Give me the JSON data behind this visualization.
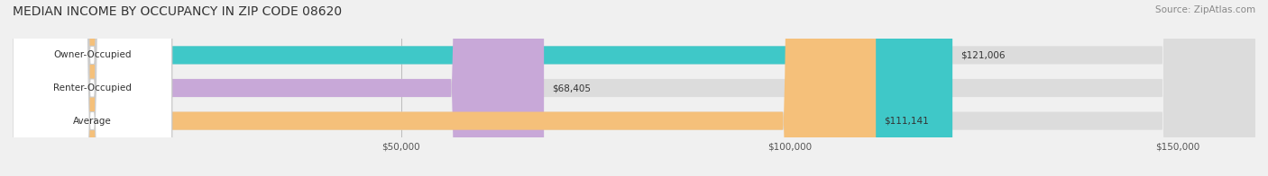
{
  "title": "MEDIAN INCOME BY OCCUPANCY IN ZIP CODE 08620",
  "source": "Source: ZipAtlas.com",
  "categories": [
    "Owner-Occupied",
    "Renter-Occupied",
    "Average"
  ],
  "values": [
    121006,
    68405,
    111141
  ],
  "labels": [
    "$121,006",
    "$68,405",
    "$111,141"
  ],
  "bar_colors": [
    "#3fc8c8",
    "#c8a8d8",
    "#f5c07a"
  ],
  "bar_edge_colors": [
    "#3fc8c8",
    "#c8a8d8",
    "#f5c07a"
  ],
  "bg_color": "#f0f0f0",
  "bar_bg_color": "#e8e8e8",
  "label_bg_color": "#ffffff",
  "xlim": [
    0,
    160000
  ],
  "xticks": [
    0,
    50000,
    100000,
    150000
  ],
  "xtick_labels": [
    "",
    "$50,000",
    "$100,000",
    "$150,000"
  ],
  "figsize": [
    14.06,
    1.96
  ],
  "dpi": 100,
  "title_fontsize": 10,
  "bar_height": 0.55,
  "category_fontsize": 7.5,
  "value_fontsize": 7.5,
  "tick_fontsize": 7.5,
  "source_fontsize": 7.5
}
